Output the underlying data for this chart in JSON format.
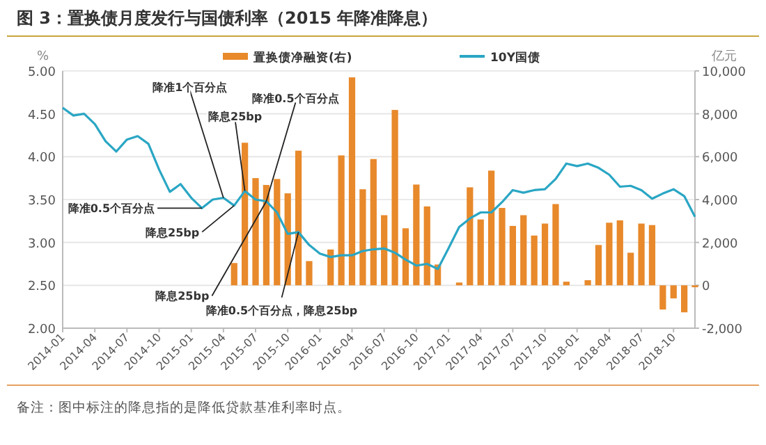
{
  "chart_data": {
    "type": "line",
    "title": "图 3：置换债月度发行与国债利率（2015 年降准降息）",
    "x": [
      "2014-01",
      "2014-02",
      "2014-03",
      "2014-04",
      "2014-05",
      "2014-06",
      "2014-07",
      "2014-08",
      "2014-09",
      "2014-10",
      "2014-11",
      "2014-12",
      "2015-01",
      "2015-02",
      "2015-03",
      "2015-04",
      "2015-05",
      "2015-06",
      "2015-07",
      "2015-08",
      "2015-09",
      "2015-10",
      "2015-11",
      "2015-12",
      "2016-01",
      "2016-02",
      "2016-03",
      "2016-04",
      "2016-05",
      "2016-06",
      "2016-07",
      "2016-08",
      "2016-09",
      "2016-10",
      "2016-11",
      "2016-12",
      "2017-01",
      "2017-02",
      "2017-03",
      "2017-04",
      "2017-05",
      "2017-06",
      "2017-07",
      "2017-08",
      "2017-09",
      "2017-10",
      "2017-11",
      "2017-12",
      "2018-01",
      "2018-02",
      "2018-03",
      "2018-04",
      "2018-05",
      "2018-06",
      "2018-07",
      "2018-08",
      "2018-09",
      "2018-10",
      "2018-11",
      "2018-12"
    ],
    "series": [
      {
        "name": "置换债净融资(右)",
        "type": "bar",
        "axis": "y2",
        "color": "#e8892b",
        "values": [
          null,
          null,
          null,
          null,
          null,
          null,
          null,
          null,
          null,
          null,
          null,
          null,
          null,
          null,
          null,
          null,
          1040,
          6650,
          5000,
          4680,
          4960,
          4290,
          6280,
          1130,
          null,
          1670,
          6060,
          9700,
          4480,
          5890,
          3270,
          8180,
          2660,
          4700,
          3680,
          970,
          null,
          130,
          4570,
          3070,
          5350,
          3610,
          2770,
          3270,
          2320,
          2880,
          3790,
          170,
          null,
          240,
          1880,
          2920,
          3030,
          1520,
          2880,
          2810,
          -1130,
          -610,
          -1260,
          -90
        ]
      },
      {
        "name": "10Y国债",
        "color": "#2aa6c4",
        "values": [
          4.57,
          4.48,
          4.5,
          4.38,
          4.18,
          4.06,
          4.2,
          4.24,
          4.15,
          3.85,
          3.59,
          3.68,
          3.52,
          3.4,
          3.5,
          3.52,
          3.43,
          3.6,
          3.5,
          3.48,
          3.35,
          3.1,
          3.12,
          2.97,
          2.87,
          2.83,
          2.85,
          2.85,
          2.9,
          2.92,
          2.93,
          2.88,
          2.8,
          2.73,
          2.75,
          2.69,
          2.93,
          3.18,
          3.28,
          3.35,
          3.35,
          3.47,
          3.61,
          3.58,
          3.61,
          3.62,
          3.74,
          3.92,
          3.89,
          3.92,
          3.87,
          3.79,
          3.65,
          3.66,
          3.61,
          3.51,
          3.57,
          3.62,
          3.54,
          3.3
        ]
      }
    ],
    "xlim": [
      "2014-01",
      "2018-12"
    ],
    "xticks": [
      "2014-01",
      "2014-04",
      "2014-07",
      "2014-10",
      "2015-01",
      "2015-04",
      "2015-07",
      "2015-10",
      "2016-01",
      "2016-04",
      "2016-07",
      "2016-10",
      "2017-01",
      "2017-04",
      "2017-07",
      "2017-10",
      "2018-01",
      "2018-04",
      "2018-07",
      "2018-10"
    ],
    "ylim": [
      2,
      5
    ],
    "yticks": [
      {
        "value": 2,
        "label": "2.00"
      },
      {
        "value": 2.5,
        "label": "2.50"
      },
      {
        "value": 3,
        "label": "3.00"
      },
      {
        "value": 3.5,
        "label": "3.50"
      },
      {
        "value": 4,
        "label": "4.00"
      },
      {
        "value": 4.5,
        "label": "4.50"
      },
      {
        "value": 5,
        "label": "5.00"
      }
    ],
    "y2lim": [
      -2000,
      10000
    ],
    "y2ticks": [
      {
        "value": -2000,
        "label": "-2,000"
      },
      {
        "value": 0,
        "label": "0"
      },
      {
        "value": 2000,
        "label": "2,000"
      },
      {
        "value": 4000,
        "label": "4,000"
      },
      {
        "value": 6000,
        "label": "6,000"
      },
      {
        "value": 8000,
        "label": "8,000"
      },
      {
        "value": 10000,
        "label": "10,000"
      }
    ],
    "ylabel": "%",
    "y2label": "亿元",
    "grid": "y",
    "legend": "top",
    "annotations": [
      {
        "text": "降准1个百分点",
        "x": "2015-04",
        "y": 3.52
      },
      {
        "text": "降息25bp",
        "x": "2015-06",
        "y": 3.6
      },
      {
        "text": "降准0.5个百分点",
        "x": "2015-08",
        "y": 3.48
      },
      {
        "text": "降准0.5个百分点",
        "x": "2015-02",
        "y": 3.4
      },
      {
        "text": "降息25bp",
        "x": "2015-05",
        "y": 3.43
      },
      {
        "text": "降息25bp",
        "x": "2015-08",
        "y": 3.48
      },
      {
        "text": "降准0.5个百分点，降息25bp",
        "x": "2015-11",
        "y": 3.12
      },
      "备注：图中标注的降息指的是降低贷款基准利率时点。"
    ]
  }
}
